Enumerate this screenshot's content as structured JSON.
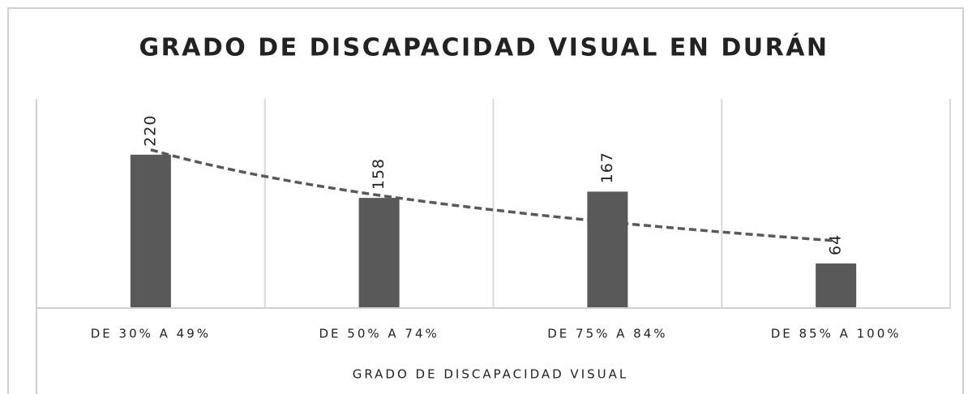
{
  "chart_data": {
    "type": "bar",
    "title": "GRADO DE DISCAPACIDAD VISUAL EN DURÁN",
    "x_label": "GRADO DE DISCAPACIDAD VISUAL",
    "categories": [
      "DE 30% A 49%",
      "DE 50% A 74%",
      "DE 75% A 84%",
      "DE 85% A 100%"
    ],
    "values": [
      220,
      158,
      167,
      64
    ],
    "color": "#595959",
    "ylim": [
      0,
      300
    ],
    "trendline": "logarithmic"
  }
}
